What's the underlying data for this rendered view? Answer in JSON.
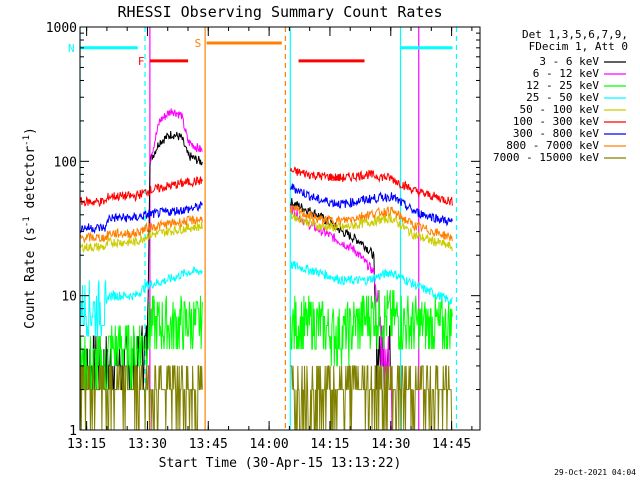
{
  "chart_data": {
    "type": "line",
    "title": "RHESSI Observing Summary Count Rates",
    "xlabel": "Start Time (30-Apr-15 13:13:22)",
    "ylabel": "Count Rate (s",
    "ylabel_sup": "-1",
    "ylabel_rest": " detector",
    "ylabel_close": ")",
    "xlim": [
      13.2228,
      14.8667
    ],
    "ylim": [
      1,
      1000
    ],
    "yscale": "log",
    "x_ticks": [
      {
        "label": "13:15",
        "hour": 13.25
      },
      {
        "label": "13:30",
        "hour": 13.5
      },
      {
        "label": "13:45",
        "hour": 13.75
      },
      {
        "label": "14:00",
        "hour": 14.0
      },
      {
        "label": "14:15",
        "hour": 14.25
      },
      {
        "label": "14:30",
        "hour": 14.5
      },
      {
        "label": "14:45",
        "hour": 14.75
      }
    ],
    "y_ticks": [
      {
        "label": "1",
        "value": 1
      },
      {
        "label": "10",
        "value": 10
      },
      {
        "label": "100",
        "value": 100
      },
      {
        "label": "1000",
        "value": 1000
      }
    ],
    "legend_header": [
      "Det 1,3,5,6,7,9,",
      "FDecim 1, Att 0"
    ],
    "legend_position": "right",
    "timestamp": "29-Oct-2021 04:04",
    "data_gaps": [
      [
        13.727,
        14.087
      ]
    ],
    "series": [
      {
        "name": "3 - 6 keV",
        "color": "#000000",
        "points": [
          [
            13.223,
            3
          ],
          [
            13.46,
            3
          ],
          [
            13.47,
            4
          ],
          [
            13.5,
            4
          ],
          [
            13.51,
            100
          ],
          [
            13.55,
            140
          ],
          [
            13.6,
            160
          ],
          [
            13.64,
            150
          ],
          [
            13.667,
            110
          ],
          [
            14.087,
            50
          ],
          [
            14.2,
            40
          ],
          [
            14.3,
            30
          ],
          [
            14.38,
            25
          ],
          [
            14.43,
            20
          ],
          [
            14.44,
            4
          ],
          [
            14.5,
            4
          ]
        ]
      },
      {
        "name": "6 - 12 keV",
        "color": "#ff00ff",
        "points": [
          [
            13.51,
            100
          ],
          [
            13.55,
            200
          ],
          [
            13.6,
            240
          ],
          [
            13.64,
            220
          ],
          [
            13.667,
            140
          ],
          [
            14.087,
            45
          ],
          [
            14.15,
            35
          ],
          [
            14.25,
            28
          ],
          [
            14.35,
            22
          ],
          [
            14.43,
            15
          ],
          [
            14.46,
            5
          ],
          [
            14.49,
            3
          ],
          [
            14.52,
            1
          ]
        ]
      },
      {
        "name": "12 - 25 keV",
        "color": "#00ff00",
        "points": [
          [
            13.223,
            3
          ],
          [
            13.33,
            3
          ],
          [
            13.34,
            4
          ],
          [
            13.45,
            4
          ],
          [
            13.5,
            5
          ],
          [
            13.51,
            6
          ],
          [
            13.667,
            6
          ],
          [
            14.087,
            6
          ],
          [
            14.2,
            6
          ],
          [
            14.3,
            5
          ],
          [
            14.4,
            7
          ],
          [
            14.5,
            7
          ],
          [
            14.6,
            6
          ],
          [
            14.754,
            6
          ]
        ]
      },
      {
        "name": "25 - 50 keV",
        "color": "#00ffff",
        "points": [
          [
            13.223,
            8
          ],
          [
            13.33,
            8
          ],
          [
            13.34,
            10
          ],
          [
            13.45,
            10
          ],
          [
            13.5,
            12
          ],
          [
            13.58,
            13
          ],
          [
            13.667,
            15
          ],
          [
            14.087,
            17
          ],
          [
            14.2,
            15
          ],
          [
            14.3,
            13
          ],
          [
            14.4,
            13
          ],
          [
            14.5,
            15
          ],
          [
            14.6,
            12
          ],
          [
            14.754,
            9
          ]
        ]
      },
      {
        "name": "50 - 100 keV",
        "color": "#cccc00",
        "points": [
          [
            13.223,
            23
          ],
          [
            13.33,
            23
          ],
          [
            13.34,
            25
          ],
          [
            13.45,
            25
          ],
          [
            13.5,
            28
          ],
          [
            13.58,
            30
          ],
          [
            13.667,
            32
          ],
          [
            14.087,
            40
          ],
          [
            14.2,
            33
          ],
          [
            14.3,
            32
          ],
          [
            14.4,
            35
          ],
          [
            14.5,
            38
          ],
          [
            14.6,
            28
          ],
          [
            14.754,
            23
          ]
        ]
      },
      {
        "name": "100 - 300 keV",
        "color": "#ff0000",
        "points": [
          [
            13.223,
            50
          ],
          [
            13.33,
            50
          ],
          [
            13.34,
            55
          ],
          [
            13.45,
            55
          ],
          [
            13.5,
            60
          ],
          [
            13.58,
            65
          ],
          [
            13.667,
            70
          ],
          [
            14.087,
            85
          ],
          [
            14.2,
            78
          ],
          [
            14.3,
            75
          ],
          [
            14.4,
            80
          ],
          [
            14.5,
            75
          ],
          [
            14.6,
            60
          ],
          [
            14.754,
            50
          ]
        ]
      },
      {
        "name": "300 - 800 keV",
        "color": "#0000ff",
        "points": [
          [
            13.223,
            32
          ],
          [
            13.33,
            32
          ],
          [
            13.34,
            38
          ],
          [
            13.45,
            38
          ],
          [
            13.5,
            40
          ],
          [
            13.58,
            42
          ],
          [
            13.667,
            44
          ],
          [
            14.087,
            65
          ],
          [
            14.2,
            52
          ],
          [
            14.3,
            48
          ],
          [
            14.4,
            52
          ],
          [
            14.5,
            55
          ],
          [
            14.6,
            42
          ],
          [
            14.754,
            35
          ]
        ]
      },
      {
        "name": "800 - 7000 keV",
        "color": "#ff8000",
        "points": [
          [
            13.223,
            27
          ],
          [
            13.33,
            27
          ],
          [
            13.34,
            29
          ],
          [
            13.45,
            29
          ],
          [
            13.5,
            32
          ],
          [
            13.58,
            34
          ],
          [
            13.667,
            36
          ],
          [
            14.087,
            45
          ],
          [
            14.2,
            37
          ],
          [
            14.3,
            36
          ],
          [
            14.4,
            40
          ],
          [
            14.5,
            43
          ],
          [
            14.6,
            33
          ],
          [
            14.754,
            27
          ]
        ]
      },
      {
        "name": "7000 - 15000 keV",
        "color": "#808000",
        "points": [
          [
            13.223,
            2
          ],
          [
            13.5,
            2
          ],
          [
            13.667,
            2
          ],
          [
            14.087,
            2
          ],
          [
            14.3,
            2
          ],
          [
            14.5,
            2
          ],
          [
            14.754,
            2
          ]
        ]
      }
    ],
    "annotations": [
      {
        "type": "attenuator_bar",
        "label": "N",
        "color": "#00ffff",
        "y": 700,
        "segments": [
          [
            13.223,
            13.46
          ],
          [
            14.54,
            14.754
          ]
        ]
      },
      {
        "type": "attenuator_bar",
        "label": "F",
        "color": "#ff0000",
        "y": 560,
        "segments": [
          [
            13.51,
            13.667
          ],
          [
            14.121,
            14.392
          ]
        ]
      },
      {
        "type": "attenuator_bar",
        "label": "S",
        "color": "#ff8000",
        "y": 760,
        "segments": [
          [
            13.743,
            14.052
          ]
        ]
      },
      {
        "type": "vline",
        "color": "#00ffff",
        "style": "solid",
        "x": 13.223
      },
      {
        "type": "vline",
        "color": "#00ffff",
        "style": "dashed",
        "x": 13.49
      },
      {
        "type": "vline",
        "color": "#ff00ff",
        "style": "solid",
        "x": 13.51
      },
      {
        "type": "vline",
        "color": "#ff8000",
        "style": "solid",
        "x": 13.737
      },
      {
        "type": "vline",
        "color": "#ff8000",
        "style": "dashed",
        "x": 14.067
      },
      {
        "type": "vline",
        "color": "#00ffff",
        "style": "solid",
        "x": 14.087
      },
      {
        "type": "vline",
        "color": "#00ffff",
        "style": "solid",
        "x": 14.54
      },
      {
        "type": "vline",
        "color": "#ff00ff",
        "style": "solid",
        "x": 14.615
      },
      {
        "type": "vline",
        "color": "#00ffff",
        "style": "dashed",
        "x": 14.77
      }
    ]
  }
}
